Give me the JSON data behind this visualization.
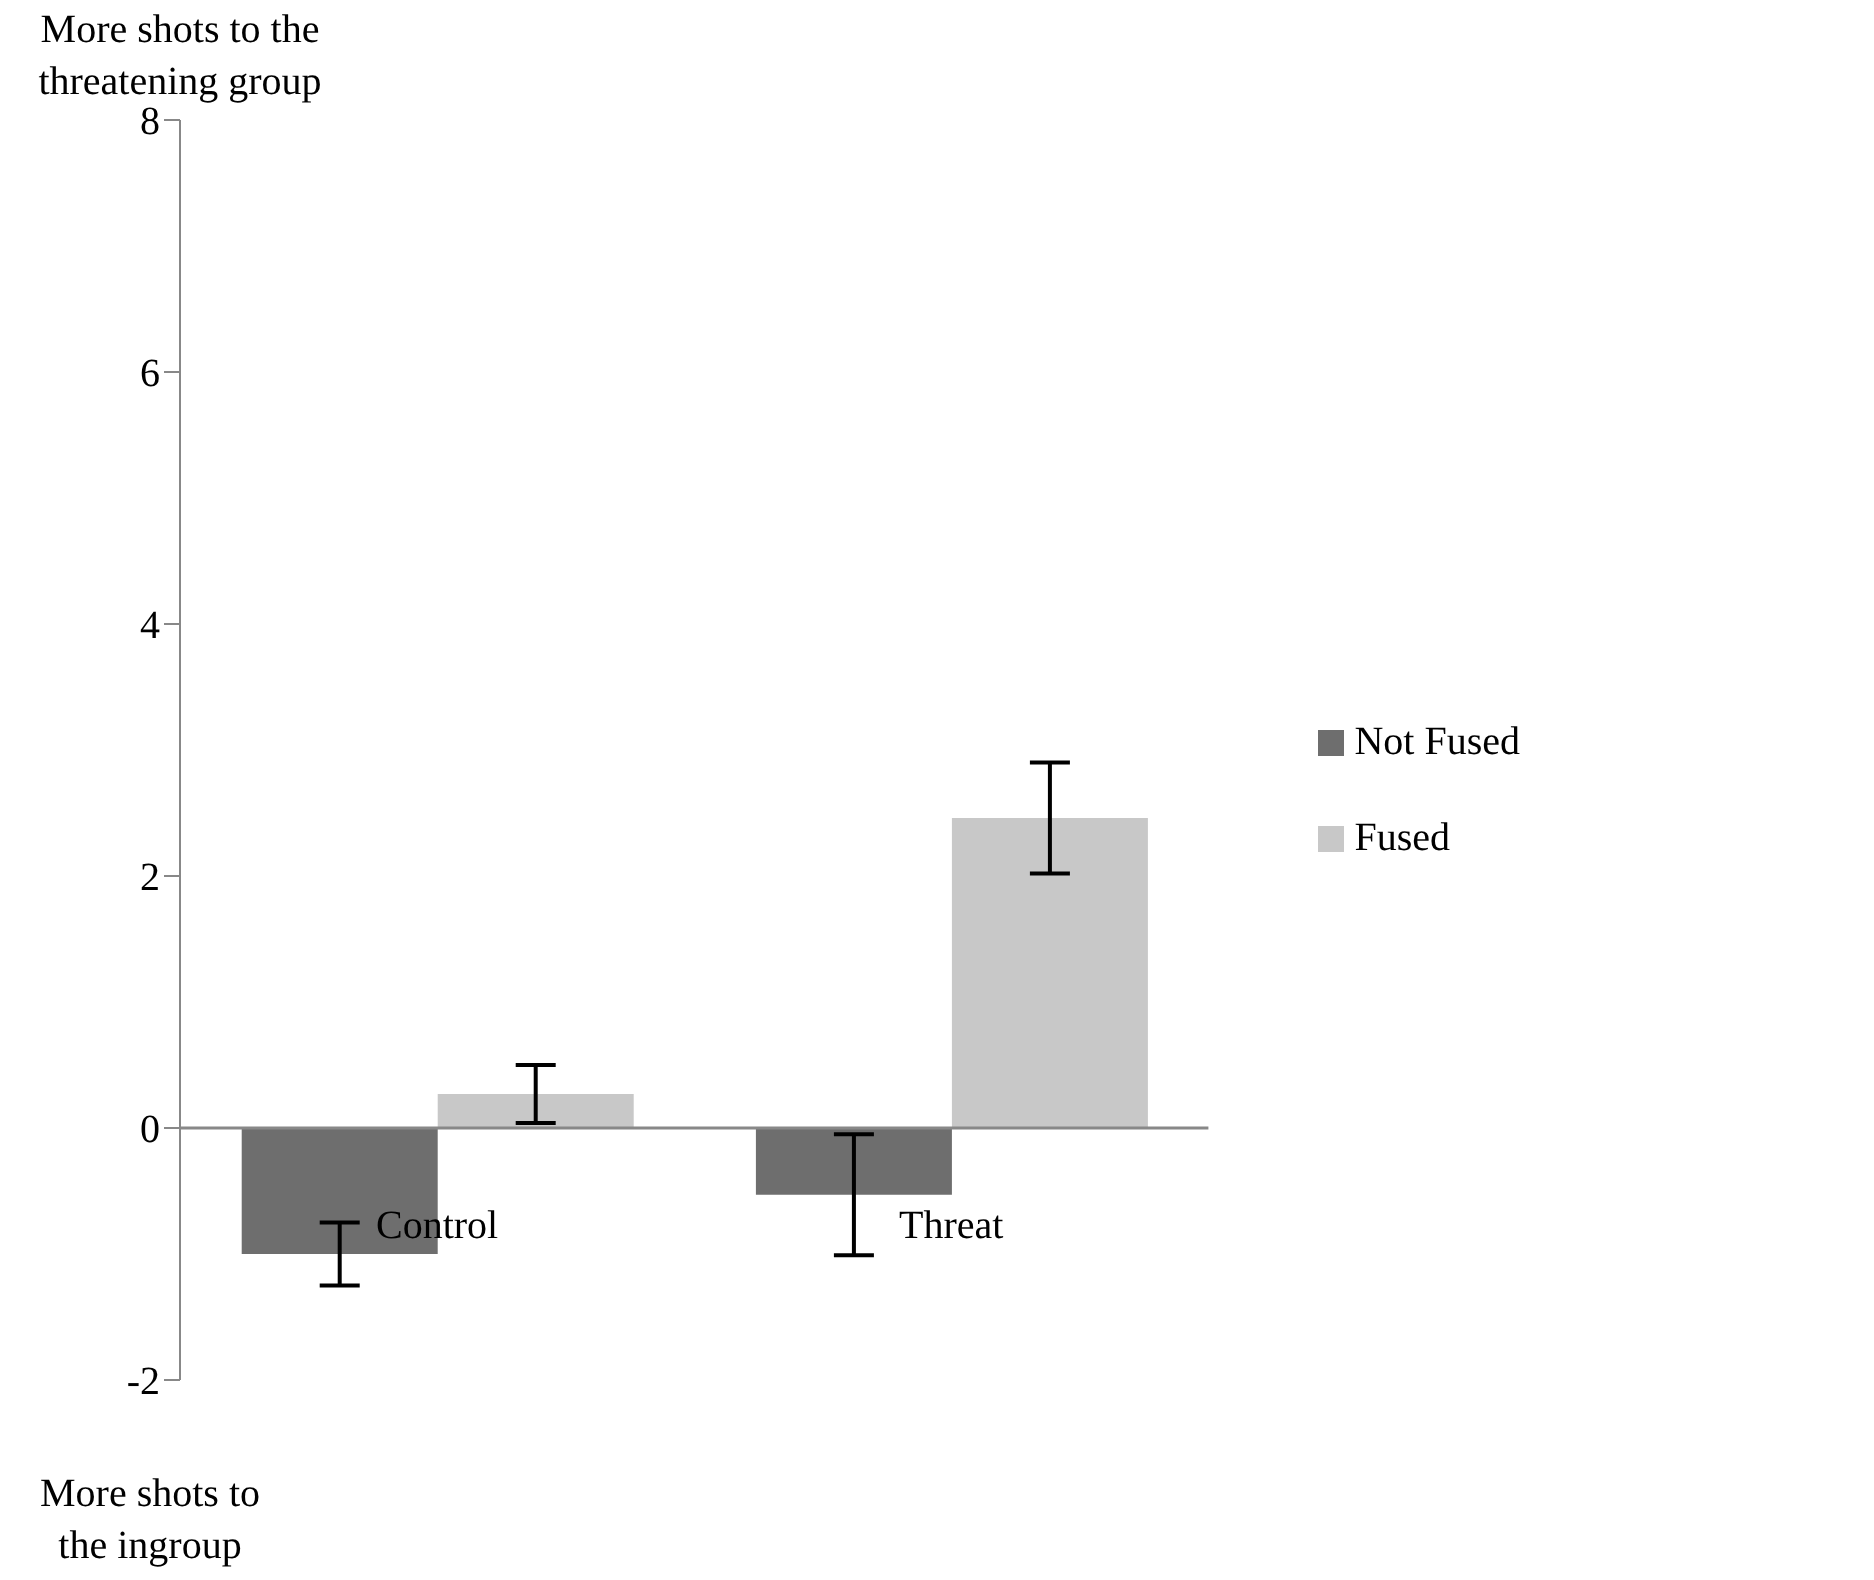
{
  "chart_data": {
    "type": "bar",
    "ylabel": "More shots to the threatening group",
    "annotations": [
      "More shots to the ingroup"
    ],
    "categories": [
      "Control",
      "Threat"
    ],
    "series": [
      {
        "name": "Not Fused",
        "color": "#6e6e6e",
        "values": [
          -1.0,
          -0.53
        ],
        "errors": [
          0.25,
          0.48
        ]
      },
      {
        "name": "Fused",
        "color": "#c8c8c8",
        "values": [
          0.27,
          2.46
        ],
        "errors": [
          0.23,
          0.44
        ]
      }
    ],
    "ylim": [
      -2,
      8
    ],
    "yticks": [
      -2,
      0,
      2,
      4,
      6,
      8
    ],
    "legend": "right"
  }
}
